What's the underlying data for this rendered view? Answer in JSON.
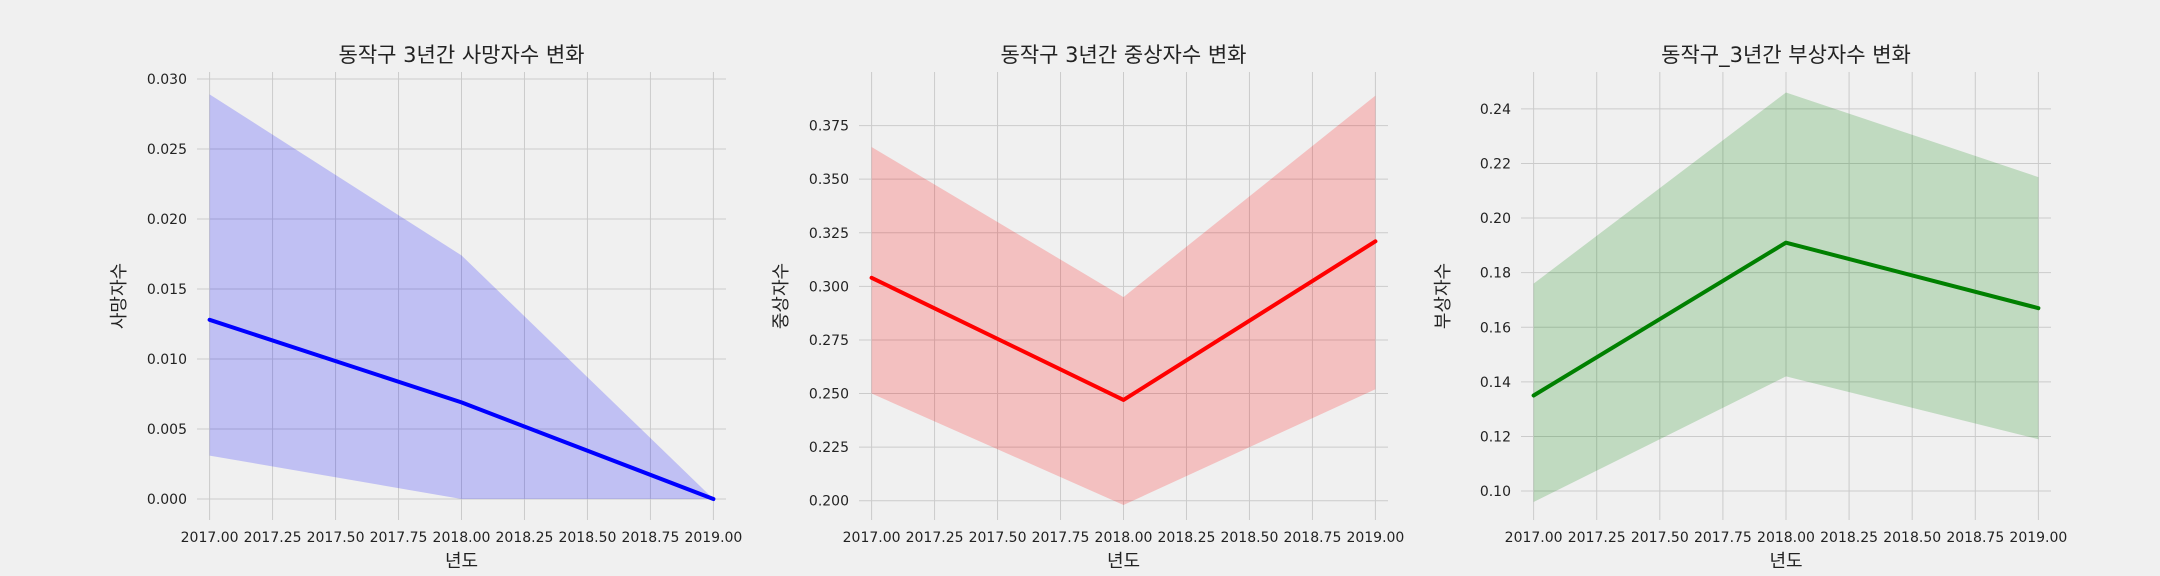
{
  "chart_data": [
    {
      "type": "line",
      "title": "동작구 3년간 사망자수 변화",
      "xlabel": "년도",
      "ylabel": "사망자수",
      "x": [
        2017.0,
        2018.0,
        2019.0
      ],
      "series": [
        {
          "values": [
            0.0128,
            0.0069,
            0.0
          ],
          "ci_lower": [
            0.0031,
            0.0,
            0.0
          ],
          "ci_upper": [
            0.0289,
            0.0174,
            0.0
          ]
        }
      ],
      "xlim": [
        2016.95,
        2019.05
      ],
      "ylim": [
        -0.0015,
        0.0305
      ],
      "xticks": [
        2017.0,
        2017.25,
        2017.5,
        2017.75,
        2018.0,
        2018.25,
        2018.5,
        2018.75,
        2019.0
      ],
      "xtick_labels": [
        "2017.00",
        "2017.25",
        "2017.50",
        "2017.75",
        "2018.00",
        "2018.25",
        "2018.50",
        "2018.75",
        "2019.00"
      ],
      "yticks": [
        0.0,
        0.005,
        0.01,
        0.015,
        0.02,
        0.025,
        0.03
      ],
      "ytick_labels": [
        "0.000",
        "0.005",
        "0.010",
        "0.015",
        "0.020",
        "0.025",
        "0.030"
      ],
      "line_color": "#0000ff",
      "band_color": "#0000ff",
      "grid": true
    },
    {
      "type": "line",
      "title": "동작구 3년간 중상자수 변화",
      "xlabel": "년도",
      "ylabel": "중상자수",
      "x": [
        2017.0,
        2018.0,
        2019.0
      ],
      "series": [
        {
          "values": [
            0.304,
            0.247,
            0.321
          ],
          "ci_lower": [
            0.25,
            0.198,
            0.252
          ],
          "ci_upper": [
            0.365,
            0.295,
            0.389
          ]
        }
      ],
      "xlim": [
        2016.95,
        2019.05
      ],
      "ylim": [
        0.191,
        0.4
      ],
      "xticks": [
        2017.0,
        2017.25,
        2017.5,
        2017.75,
        2018.0,
        2018.25,
        2018.5,
        2018.75,
        2019.0
      ],
      "xtick_labels": [
        "2017.00",
        "2017.25",
        "2017.50",
        "2017.75",
        "2018.00",
        "2018.25",
        "2018.50",
        "2018.75",
        "2019.00"
      ],
      "yticks": [
        0.2,
        0.225,
        0.25,
        0.275,
        0.3,
        0.325,
        0.35,
        0.375
      ],
      "ytick_labels": [
        "0.200",
        "0.225",
        "0.250",
        "0.275",
        "0.300",
        "0.325",
        "0.350",
        "0.375"
      ],
      "line_color": "#ff0000",
      "band_color": "#ff0000",
      "grid": true
    },
    {
      "type": "line",
      "title": "동작구_3년간 부상자수 변화",
      "xlabel": "년도",
      "ylabel": "부상자수",
      "x": [
        2017.0,
        2018.0,
        2019.0
      ],
      "series": [
        {
          "values": [
            0.135,
            0.191,
            0.167
          ],
          "ci_lower": [
            0.096,
            0.142,
            0.119
          ],
          "ci_upper": [
            0.176,
            0.246,
            0.215
          ]
        }
      ],
      "xlim": [
        2016.95,
        2019.05
      ],
      "ylim": [
        0.0894,
        0.2535
      ],
      "xticks": [
        2017.0,
        2017.25,
        2017.5,
        2017.75,
        2018.0,
        2018.25,
        2018.5,
        2018.75,
        2019.0
      ],
      "xtick_labels": [
        "2017.00",
        "2017.25",
        "2017.50",
        "2017.75",
        "2018.00",
        "2018.25",
        "2018.50",
        "2018.75",
        "2019.00"
      ],
      "yticks": [
        0.1,
        0.12,
        0.14,
        0.16,
        0.18,
        0.2,
        0.22,
        0.24
      ],
      "ytick_labels": [
        "0.10",
        "0.12",
        "0.14",
        "0.16",
        "0.18",
        "0.20",
        "0.22",
        "0.24"
      ],
      "line_color": "#008000",
      "band_color": "#008000",
      "grid": true
    }
  ]
}
